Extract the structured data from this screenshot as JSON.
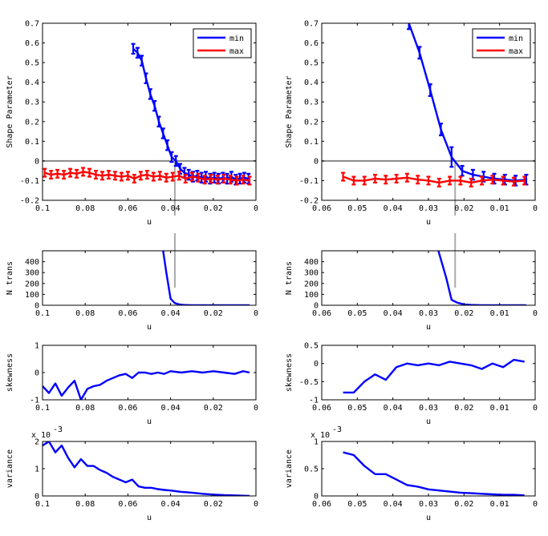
{
  "chart_data": [
    {
      "id": "L1",
      "type": "line",
      "ylabel": "Shape Parameter",
      "xlabel": "u",
      "xlim": [
        0.1,
        0
      ],
      "ylim": [
        -0.2,
        0.7
      ],
      "xticks": [
        "0.1",
        "0.08",
        "0.06",
        "0.04",
        "0.02",
        "0"
      ],
      "yticks": [
        "-0.2",
        "-0.1",
        "0",
        "0.1",
        "0.2",
        "0.3",
        "0.4",
        "0.5",
        "0.6",
        "0.7"
      ],
      "xtick_values": [
        0.1,
        0.08,
        0.06,
        0.04,
        0.02,
        0
      ],
      "ytick_values": [
        -0.2,
        -0.1,
        0,
        0.1,
        0.2,
        0.3,
        0.4,
        0.5,
        0.6,
        0.7
      ],
      "hline": 0,
      "vline": 0.038,
      "legend": [
        "min",
        "max"
      ],
      "series": [
        {
          "name": "min",
          "color": "#0000ff",
          "errorbars": true,
          "x": [
            0.0575,
            0.0555,
            0.0535,
            0.0515,
            0.0495,
            0.0475,
            0.0455,
            0.0435,
            0.0415,
            0.0395,
            0.0375,
            0.0355,
            0.0335,
            0.0315,
            0.0295,
            0.0275,
            0.0255,
            0.0235,
            0.0215,
            0.0195,
            0.0175,
            0.0155,
            0.0135,
            0.0115,
            0.0095,
            0.0075,
            0.0055,
            0.0035
          ],
          "y": [
            0.57,
            0.55,
            0.51,
            0.42,
            0.34,
            0.28,
            0.2,
            0.14,
            0.08,
            0.02,
            0.0,
            -0.04,
            -0.06,
            -0.07,
            -0.08,
            -0.075,
            -0.085,
            -0.08,
            -0.09,
            -0.085,
            -0.09,
            -0.085,
            -0.09,
            -0.08,
            -0.095,
            -0.09,
            -0.085,
            -0.09
          ],
          "err": [
            0.025,
            0.025,
            0.025,
            0.025,
            0.025,
            0.025,
            0.025,
            0.025,
            0.025,
            0.025,
            0.025,
            0.025,
            0.025,
            0.025,
            0.025,
            0.025,
            0.025,
            0.025,
            0.025,
            0.025,
            0.025,
            0.025,
            0.025,
            0.025,
            0.025,
            0.025,
            0.025,
            0.025
          ]
        },
        {
          "name": "max",
          "color": "#ff0000",
          "errorbars": true,
          "x": [
            0.099,
            0.096,
            0.093,
            0.09,
            0.087,
            0.084,
            0.081,
            0.078,
            0.075,
            0.072,
            0.069,
            0.066,
            0.063,
            0.06,
            0.057,
            0.054,
            0.051,
            0.048,
            0.045,
            0.042,
            0.039,
            0.036,
            0.033,
            0.03,
            0.027,
            0.024,
            0.021,
            0.018,
            0.015,
            0.012,
            0.009,
            0.006,
            0.003
          ],
          "y": [
            -0.06,
            -0.07,
            -0.065,
            -0.07,
            -0.06,
            -0.065,
            -0.055,
            -0.06,
            -0.07,
            -0.075,
            -0.07,
            -0.075,
            -0.08,
            -0.075,
            -0.09,
            -0.075,
            -0.07,
            -0.08,
            -0.075,
            -0.085,
            -0.08,
            -0.075,
            -0.09,
            -0.08,
            -0.085,
            -0.095,
            -0.09,
            -0.095,
            -0.09,
            -0.095,
            -0.1,
            -0.095,
            -0.1
          ],
          "err": [
            0.02,
            0.02,
            0.02,
            0.02,
            0.02,
            0.02,
            0.02,
            0.02,
            0.02,
            0.02,
            0.02,
            0.02,
            0.02,
            0.02,
            0.02,
            0.02,
            0.02,
            0.02,
            0.02,
            0.02,
            0.02,
            0.02,
            0.02,
            0.02,
            0.02,
            0.02,
            0.02,
            0.02,
            0.02,
            0.02,
            0.02,
            0.02,
            0.02
          ]
        }
      ]
    },
    {
      "id": "R1",
      "type": "line",
      "ylabel": "Shape Parameter",
      "xlabel": "u",
      "xlim": [
        0.06,
        0
      ],
      "ylim": [
        -0.2,
        0.7
      ],
      "xticks": [
        "0.06",
        "0.05",
        "0.04",
        "0.03",
        "0.02",
        "0.01",
        "0"
      ],
      "yticks": [
        "-0.2",
        "-0.1",
        "0",
        "0.1",
        "0.2",
        "0.3",
        "0.4",
        "0.5",
        "0.6",
        "0.7"
      ],
      "xtick_values": [
        0.06,
        0.05,
        0.04,
        0.03,
        0.02,
        0.01,
        0
      ],
      "ytick_values": [
        -0.2,
        -0.1,
        0,
        0.1,
        0.2,
        0.3,
        0.4,
        0.5,
        0.6,
        0.7
      ],
      "hline": 0,
      "vline": 0.0225,
      "legend": [
        "min",
        "max"
      ],
      "series": [
        {
          "name": "min",
          "color": "#0000ff",
          "errorbars": true,
          "x": [
            0.0355,
            0.0325,
            0.0295,
            0.0265,
            0.0235,
            0.0205,
            0.0175,
            0.0145,
            0.0115,
            0.0085,
            0.0055,
            0.0025
          ],
          "y": [
            0.7,
            0.55,
            0.36,
            0.16,
            0.02,
            -0.05,
            -0.07,
            -0.08,
            -0.09,
            -0.095,
            -0.1,
            -0.095
          ],
          "err": [
            0.03,
            0.03,
            0.03,
            0.03,
            0.05,
            0.025,
            0.025,
            0.025,
            0.025,
            0.025,
            0.025,
            0.025
          ]
        },
        {
          "name": "max",
          "color": "#ff0000",
          "errorbars": true,
          "x": [
            0.054,
            0.051,
            0.048,
            0.045,
            0.042,
            0.039,
            0.036,
            0.033,
            0.03,
            0.027,
            0.024,
            0.021,
            0.018,
            0.015,
            0.012,
            0.009,
            0.006,
            0.003
          ],
          "y": [
            -0.08,
            -0.1,
            -0.1,
            -0.09,
            -0.095,
            -0.09,
            -0.085,
            -0.095,
            -0.1,
            -0.11,
            -0.1,
            -0.1,
            -0.11,
            -0.1,
            -0.095,
            -0.1,
            -0.105,
            -0.1
          ],
          "err": [
            0.02,
            0.02,
            0.02,
            0.02,
            0.02,
            0.02,
            0.02,
            0.02,
            0.02,
            0.02,
            0.02,
            0.02,
            0.02,
            0.02,
            0.02,
            0.02,
            0.02,
            0.02
          ]
        }
      ]
    },
    {
      "id": "L2",
      "type": "line",
      "ylabel": "N trans",
      "xlabel": "u",
      "xlim": [
        0.1,
        0
      ],
      "ylim": [
        0,
        500
      ],
      "xticks": [
        "0.1",
        "0.08",
        "0.06",
        "0.04",
        "0.02",
        "0"
      ],
      "yticks": [
        "0",
        "100",
        "200",
        "300",
        "400"
      ],
      "xtick_values": [
        0.1,
        0.08,
        0.06,
        0.04,
        0.02,
        0
      ],
      "ytick_values": [
        0,
        100,
        200,
        300,
        400
      ],
      "vline": 0.038,
      "series": [
        {
          "name": "N trans",
          "color": "#0000ff",
          "x": [
            0.0435,
            0.042,
            0.04,
            0.038,
            0.036,
            0.034,
            0.03,
            0.02,
            0.01,
            0.003
          ],
          "y": [
            500,
            300,
            60,
            20,
            8,
            3,
            1,
            0,
            0,
            0
          ]
        }
      ]
    },
    {
      "id": "R2",
      "type": "line",
      "ylabel": "N trans",
      "xlabel": "u",
      "xlim": [
        0.06,
        0
      ],
      "ylim": [
        0,
        500
      ],
      "xticks": [
        "0.06",
        "0.05",
        "0.04",
        "0.03",
        "0.02",
        "0.01",
        "0"
      ],
      "yticks": [
        "0",
        "100",
        "200",
        "300",
        "400"
      ],
      "xtick_values": [
        0.06,
        0.05,
        0.04,
        0.03,
        0.02,
        0.01,
        0
      ],
      "ytick_values": [
        0,
        100,
        200,
        300,
        400
      ],
      "vline": 0.0225,
      "series": [
        {
          "name": "N trans",
          "color": "#0000ff",
          "x": [
            0.0272,
            0.025,
            0.0235,
            0.022,
            0.02,
            0.018,
            0.015,
            0.01,
            0.005,
            0.0025
          ],
          "y": [
            500,
            250,
            50,
            25,
            8,
            3,
            1,
            0,
            0,
            0
          ]
        }
      ]
    },
    {
      "id": "L3",
      "type": "line",
      "ylabel": "skewness",
      "xlabel": "u",
      "xlim": [
        0.1,
        0
      ],
      "ylim": [
        -1,
        1
      ],
      "xticks": [
        "0.1",
        "0.08",
        "0.06",
        "0.04",
        "0.02",
        "0"
      ],
      "yticks": [
        "-1",
        "0",
        "1"
      ],
      "xtick_values": [
        0.1,
        0.08,
        0.06,
        0.04,
        0.02,
        0
      ],
      "ytick_values": [
        -1,
        0,
        1
      ],
      "series": [
        {
          "name": "skewness",
          "color": "#0000ff",
          "x": [
            0.1,
            0.097,
            0.094,
            0.091,
            0.088,
            0.085,
            0.082,
            0.079,
            0.076,
            0.073,
            0.07,
            0.067,
            0.064,
            0.061,
            0.058,
            0.055,
            0.052,
            0.049,
            0.046,
            0.043,
            0.04,
            0.035,
            0.03,
            0.025,
            0.02,
            0.015,
            0.01,
            0.006,
            0.003
          ],
          "y": [
            -0.5,
            -0.75,
            -0.4,
            -0.85,
            -0.55,
            -0.3,
            -1.0,
            -0.6,
            -0.5,
            -0.45,
            -0.3,
            -0.2,
            -0.1,
            -0.05,
            -0.2,
            0.0,
            0.0,
            -0.05,
            0.0,
            -0.05,
            0.05,
            0.0,
            0.05,
            0.0,
            0.05,
            0.0,
            -0.05,
            0.05,
            0.0
          ]
        }
      ]
    },
    {
      "id": "R3",
      "type": "line",
      "ylabel": "skewness",
      "xlabel": "u",
      "xlim": [
        0.06,
        0
      ],
      "ylim": [
        -1,
        0.5
      ],
      "xticks": [
        "0.06",
        "0.05",
        "0.04",
        "0.03",
        "0.02",
        "0.01",
        "0"
      ],
      "yticks": [
        "-1",
        "-0.5",
        "0",
        "0.5"
      ],
      "xtick_values": [
        0.06,
        0.05,
        0.04,
        0.03,
        0.02,
        0.01,
        0
      ],
      "ytick_values": [
        -1,
        -0.5,
        0,
        0.5
      ],
      "series": [
        {
          "name": "skewness",
          "color": "#0000ff",
          "x": [
            0.054,
            0.051,
            0.048,
            0.045,
            0.042,
            0.039,
            0.036,
            0.033,
            0.03,
            0.027,
            0.024,
            0.021,
            0.018,
            0.015,
            0.012,
            0.009,
            0.006,
            0.003
          ],
          "y": [
            -0.8,
            -0.8,
            -0.5,
            -0.3,
            -0.45,
            -0.1,
            0.0,
            -0.05,
            0.0,
            -0.05,
            0.05,
            0.0,
            -0.05,
            -0.15,
            0.0,
            -0.1,
            0.1,
            0.05
          ]
        }
      ]
    },
    {
      "id": "L4",
      "type": "line",
      "ylabel": "variance",
      "xlabel": "u",
      "exponent": "x 10",
      "exponent_power": "-3",
      "xlim": [
        0.1,
        0
      ],
      "ylim": [
        0,
        2
      ],
      "xticks": [
        "0.1",
        "0.08",
        "0.06",
        "0.04",
        "0.02",
        "0"
      ],
      "yticks": [
        "0",
        "1",
        "2"
      ],
      "xtick_values": [
        0.1,
        0.08,
        0.06,
        0.04,
        0.02,
        0
      ],
      "ytick_values": [
        0,
        1,
        2
      ],
      "series": [
        {
          "name": "variance",
          "color": "#0000ff",
          "x": [
            0.1,
            0.097,
            0.094,
            0.091,
            0.088,
            0.085,
            0.082,
            0.079,
            0.076,
            0.073,
            0.07,
            0.067,
            0.064,
            0.061,
            0.058,
            0.055,
            0.052,
            0.049,
            0.046,
            0.043,
            0.04,
            0.035,
            0.03,
            0.025,
            0.02,
            0.015,
            0.01,
            0.006,
            0.003
          ],
          "y": [
            1.85,
            2.0,
            1.6,
            1.85,
            1.4,
            1.05,
            1.35,
            1.1,
            1.1,
            0.95,
            0.85,
            0.7,
            0.6,
            0.5,
            0.6,
            0.35,
            0.3,
            0.3,
            0.25,
            0.22,
            0.2,
            0.15,
            0.12,
            0.08,
            0.05,
            0.03,
            0.02,
            0.01,
            0.0
          ]
        }
      ]
    },
    {
      "id": "R4",
      "type": "line",
      "ylabel": "variance",
      "xlabel": "u",
      "exponent": "x 10",
      "exponent_power": "-3",
      "xlim": [
        0.06,
        0
      ],
      "ylim": [
        0,
        1
      ],
      "xticks": [
        "0.06",
        "0.05",
        "0.04",
        "0.03",
        "0.02",
        "0.01",
        "0"
      ],
      "yticks": [
        "0",
        "0.5",
        "1"
      ],
      "xtick_values": [
        0.06,
        0.05,
        0.04,
        0.03,
        0.02,
        0.01,
        0
      ],
      "ytick_values": [
        0,
        0.5,
        1
      ],
      "series": [
        {
          "name": "variance",
          "color": "#0000ff",
          "x": [
            0.054,
            0.051,
            0.048,
            0.045,
            0.042,
            0.039,
            0.036,
            0.033,
            0.03,
            0.027,
            0.024,
            0.021,
            0.018,
            0.015,
            0.012,
            0.009,
            0.006,
            0.003
          ],
          "y": [
            0.8,
            0.75,
            0.55,
            0.4,
            0.4,
            0.3,
            0.2,
            0.17,
            0.12,
            0.1,
            0.08,
            0.06,
            0.05,
            0.04,
            0.03,
            0.02,
            0.02,
            0.01
          ]
        }
      ]
    }
  ]
}
